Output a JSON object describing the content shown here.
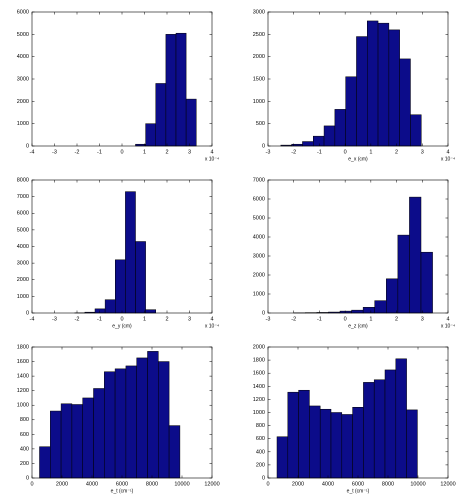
{
  "chart_data": [
    {
      "type": "histogram",
      "x_multiplier": "x 10⁻⁴",
      "bins": [
        0.6,
        1.05,
        1.5,
        1.95,
        2.4,
        2.85,
        3.3
      ],
      "counts": [
        80,
        1000,
        2800,
        5000,
        5050,
        2100
      ],
      "xlim": [
        -4,
        4
      ],
      "xticks": [
        -4,
        -3,
        -2,
        -1,
        0,
        1,
        2,
        3,
        4
      ],
      "ylim": [
        0,
        6000
      ],
      "yticks": [
        0,
        1000,
        2000,
        3000,
        4000,
        5000,
        6000
      ],
      "color": "#0c0c8a"
    },
    {
      "type": "histogram",
      "xlabel": "e_x (cm)",
      "x_multiplier": "x 10⁻⁴",
      "bins": [
        -2.5,
        -2.08,
        -1.66,
        -1.24,
        -0.82,
        -0.4,
        0.02,
        0.44,
        0.86,
        1.28,
        1.7,
        2.12,
        2.54,
        2.96
      ],
      "counts": [
        20,
        40,
        100,
        220,
        450,
        820,
        1550,
        2450,
        2800,
        2750,
        2600,
        1950,
        700
      ],
      "xlim": [
        -3,
        4
      ],
      "xticks": [
        -3,
        -2,
        -1,
        0,
        1,
        2,
        3,
        4
      ],
      "ylim": [
        0,
        3000
      ],
      "yticks": [
        0,
        500,
        1000,
        1500,
        2000,
        2500,
        3000
      ],
      "color": "#0c0c8a"
    },
    {
      "type": "histogram",
      "xlabel": "e_y (cm)",
      "x_multiplier": "x 10⁻⁴",
      "bins": [
        -2.1,
        -1.65,
        -1.2,
        -0.75,
        -0.3,
        0.15,
        0.6,
        1.05,
        1.5
      ],
      "counts": [
        10,
        50,
        250,
        800,
        3200,
        7300,
        4300,
        200
      ],
      "xlim": [
        -4,
        4
      ],
      "xticks": [
        -4,
        -3,
        -2,
        -1,
        0,
        1,
        2,
        3,
        4
      ],
      "ylim": [
        0,
        8000
      ],
      "yticks": [
        0,
        1000,
        2000,
        3000,
        4000,
        5000,
        6000,
        7000,
        8000
      ],
      "color": "#0c0c8a"
    },
    {
      "type": "histogram",
      "xlabel": "e_z (cm)",
      "x_multiplier": "x 10⁻⁴",
      "bins": [
        -2.0,
        -1.55,
        -1.1,
        -0.65,
        -0.2,
        0.25,
        0.7,
        1.15,
        1.6,
        2.05,
        2.5,
        2.95,
        3.4
      ],
      "counts": [
        10,
        20,
        30,
        50,
        100,
        150,
        300,
        650,
        1800,
        4100,
        6100,
        3200
      ],
      "xlim": [
        -3,
        4
      ],
      "xticks": [
        -3,
        -2,
        -1,
        0,
        1,
        2,
        3,
        4
      ],
      "ylim": [
        0,
        7000
      ],
      "yticks": [
        0,
        1000,
        2000,
        3000,
        4000,
        5000,
        6000,
        7000
      ],
      "color": "#0c0c8a"
    },
    {
      "type": "histogram",
      "xlabel": "e_t (cm⁻¹)",
      "bins": [
        500,
        1220,
        1940,
        2660,
        3380,
        4100,
        4820,
        5540,
        6260,
        6980,
        7700,
        8420,
        9140,
        9860
      ],
      "counts": [
        430,
        920,
        1020,
        1010,
        1100,
        1230,
        1460,
        1500,
        1540,
        1650,
        1740,
        1600,
        720
      ],
      "xlim": [
        0,
        12000
      ],
      "xticks": [
        0,
        2000,
        4000,
        6000,
        8000,
        10000,
        12000
      ],
      "ylim": [
        0,
        1800
      ],
      "yticks": [
        0,
        200,
        400,
        600,
        800,
        1000,
        1200,
        1400,
        1600,
        1800
      ],
      "color": "#0c0c8a"
    },
    {
      "type": "histogram",
      "xlabel": "e_t (cm⁻¹)",
      "bins": [
        600,
        1320,
        2040,
        2760,
        3480,
        4200,
        4920,
        5640,
        6360,
        7080,
        7800,
        8520,
        9240,
        9960
      ],
      "counts": [
        630,
        1310,
        1340,
        1100,
        1050,
        1000,
        970,
        1080,
        1460,
        1500,
        1650,
        1820,
        1040
      ],
      "xlim": [
        0,
        12000
      ],
      "xticks": [
        0,
        2000,
        4000,
        6000,
        8000,
        10000,
        12000
      ],
      "ylim": [
        0,
        2000
      ],
      "yticks": [
        0,
        200,
        400,
        600,
        800,
        1000,
        1200,
        1400,
        1600,
        1800,
        2000
      ],
      "color": "#0c0c8a"
    }
  ]
}
